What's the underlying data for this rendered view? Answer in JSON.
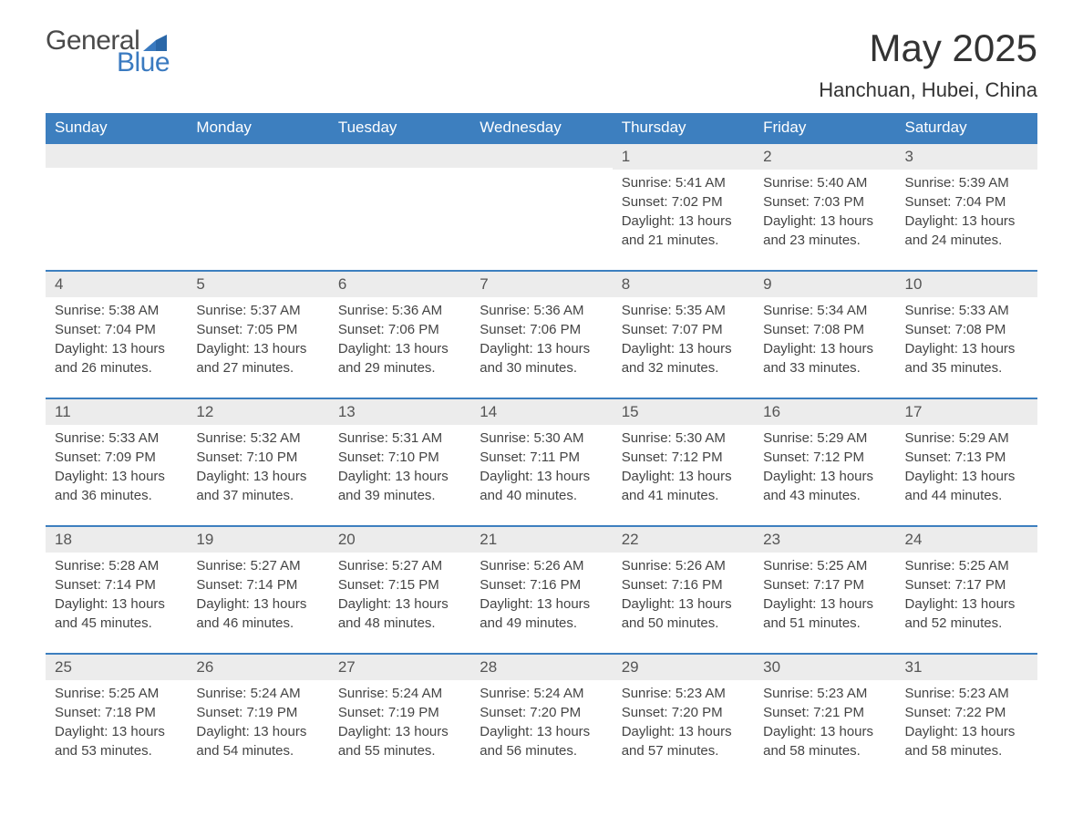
{
  "brand": {
    "general": "General",
    "blue": "Blue"
  },
  "header": {
    "month_title": "May 2025",
    "location": "Hanchuan, Hubei, China"
  },
  "colors": {
    "header_blue": "#3d7fbf",
    "light_gray": "#ececec",
    "divider_blue": "#3d7fbf",
    "body_text": "#444444",
    "brand_blue": "#3a7ac0"
  },
  "weekdays": [
    "Sunday",
    "Monday",
    "Tuesday",
    "Wednesday",
    "Thursday",
    "Friday",
    "Saturday"
  ],
  "layout": {
    "type": "calendar-table",
    "columns": 7,
    "rows": 5,
    "first_weekday_index": 4
  },
  "days": [
    {
      "n": 1,
      "sunrise": "5:41 AM",
      "sunset": "7:02 PM",
      "daylight": "13 hours and 21 minutes."
    },
    {
      "n": 2,
      "sunrise": "5:40 AM",
      "sunset": "7:03 PM",
      "daylight": "13 hours and 23 minutes."
    },
    {
      "n": 3,
      "sunrise": "5:39 AM",
      "sunset": "7:04 PM",
      "daylight": "13 hours and 24 minutes."
    },
    {
      "n": 4,
      "sunrise": "5:38 AM",
      "sunset": "7:04 PM",
      "daylight": "13 hours and 26 minutes."
    },
    {
      "n": 5,
      "sunrise": "5:37 AM",
      "sunset": "7:05 PM",
      "daylight": "13 hours and 27 minutes."
    },
    {
      "n": 6,
      "sunrise": "5:36 AM",
      "sunset": "7:06 PM",
      "daylight": "13 hours and 29 minutes."
    },
    {
      "n": 7,
      "sunrise": "5:36 AM",
      "sunset": "7:06 PM",
      "daylight": "13 hours and 30 minutes."
    },
    {
      "n": 8,
      "sunrise": "5:35 AM",
      "sunset": "7:07 PM",
      "daylight": "13 hours and 32 minutes."
    },
    {
      "n": 9,
      "sunrise": "5:34 AM",
      "sunset": "7:08 PM",
      "daylight": "13 hours and 33 minutes."
    },
    {
      "n": 10,
      "sunrise": "5:33 AM",
      "sunset": "7:08 PM",
      "daylight": "13 hours and 35 minutes."
    },
    {
      "n": 11,
      "sunrise": "5:33 AM",
      "sunset": "7:09 PM",
      "daylight": "13 hours and 36 minutes."
    },
    {
      "n": 12,
      "sunrise": "5:32 AM",
      "sunset": "7:10 PM",
      "daylight": "13 hours and 37 minutes."
    },
    {
      "n": 13,
      "sunrise": "5:31 AM",
      "sunset": "7:10 PM",
      "daylight": "13 hours and 39 minutes."
    },
    {
      "n": 14,
      "sunrise": "5:30 AM",
      "sunset": "7:11 PM",
      "daylight": "13 hours and 40 minutes."
    },
    {
      "n": 15,
      "sunrise": "5:30 AM",
      "sunset": "7:12 PM",
      "daylight": "13 hours and 41 minutes."
    },
    {
      "n": 16,
      "sunrise": "5:29 AM",
      "sunset": "7:12 PM",
      "daylight": "13 hours and 43 minutes."
    },
    {
      "n": 17,
      "sunrise": "5:29 AM",
      "sunset": "7:13 PM",
      "daylight": "13 hours and 44 minutes."
    },
    {
      "n": 18,
      "sunrise": "5:28 AM",
      "sunset": "7:14 PM",
      "daylight": "13 hours and 45 minutes."
    },
    {
      "n": 19,
      "sunrise": "5:27 AM",
      "sunset": "7:14 PM",
      "daylight": "13 hours and 46 minutes."
    },
    {
      "n": 20,
      "sunrise": "5:27 AM",
      "sunset": "7:15 PM",
      "daylight": "13 hours and 48 minutes."
    },
    {
      "n": 21,
      "sunrise": "5:26 AM",
      "sunset": "7:16 PM",
      "daylight": "13 hours and 49 minutes."
    },
    {
      "n": 22,
      "sunrise": "5:26 AM",
      "sunset": "7:16 PM",
      "daylight": "13 hours and 50 minutes."
    },
    {
      "n": 23,
      "sunrise": "5:25 AM",
      "sunset": "7:17 PM",
      "daylight": "13 hours and 51 minutes."
    },
    {
      "n": 24,
      "sunrise": "5:25 AM",
      "sunset": "7:17 PM",
      "daylight": "13 hours and 52 minutes."
    },
    {
      "n": 25,
      "sunrise": "5:25 AM",
      "sunset": "7:18 PM",
      "daylight": "13 hours and 53 minutes."
    },
    {
      "n": 26,
      "sunrise": "5:24 AM",
      "sunset": "7:19 PM",
      "daylight": "13 hours and 54 minutes."
    },
    {
      "n": 27,
      "sunrise": "5:24 AM",
      "sunset": "7:19 PM",
      "daylight": "13 hours and 55 minutes."
    },
    {
      "n": 28,
      "sunrise": "5:24 AM",
      "sunset": "7:20 PM",
      "daylight": "13 hours and 56 minutes."
    },
    {
      "n": 29,
      "sunrise": "5:23 AM",
      "sunset": "7:20 PM",
      "daylight": "13 hours and 57 minutes."
    },
    {
      "n": 30,
      "sunrise": "5:23 AM",
      "sunset": "7:21 PM",
      "daylight": "13 hours and 58 minutes."
    },
    {
      "n": 31,
      "sunrise": "5:23 AM",
      "sunset": "7:22 PM",
      "daylight": "13 hours and 58 minutes."
    }
  ],
  "labels": {
    "sunrise": "Sunrise:",
    "sunset": "Sunset:",
    "daylight": "Daylight:"
  }
}
